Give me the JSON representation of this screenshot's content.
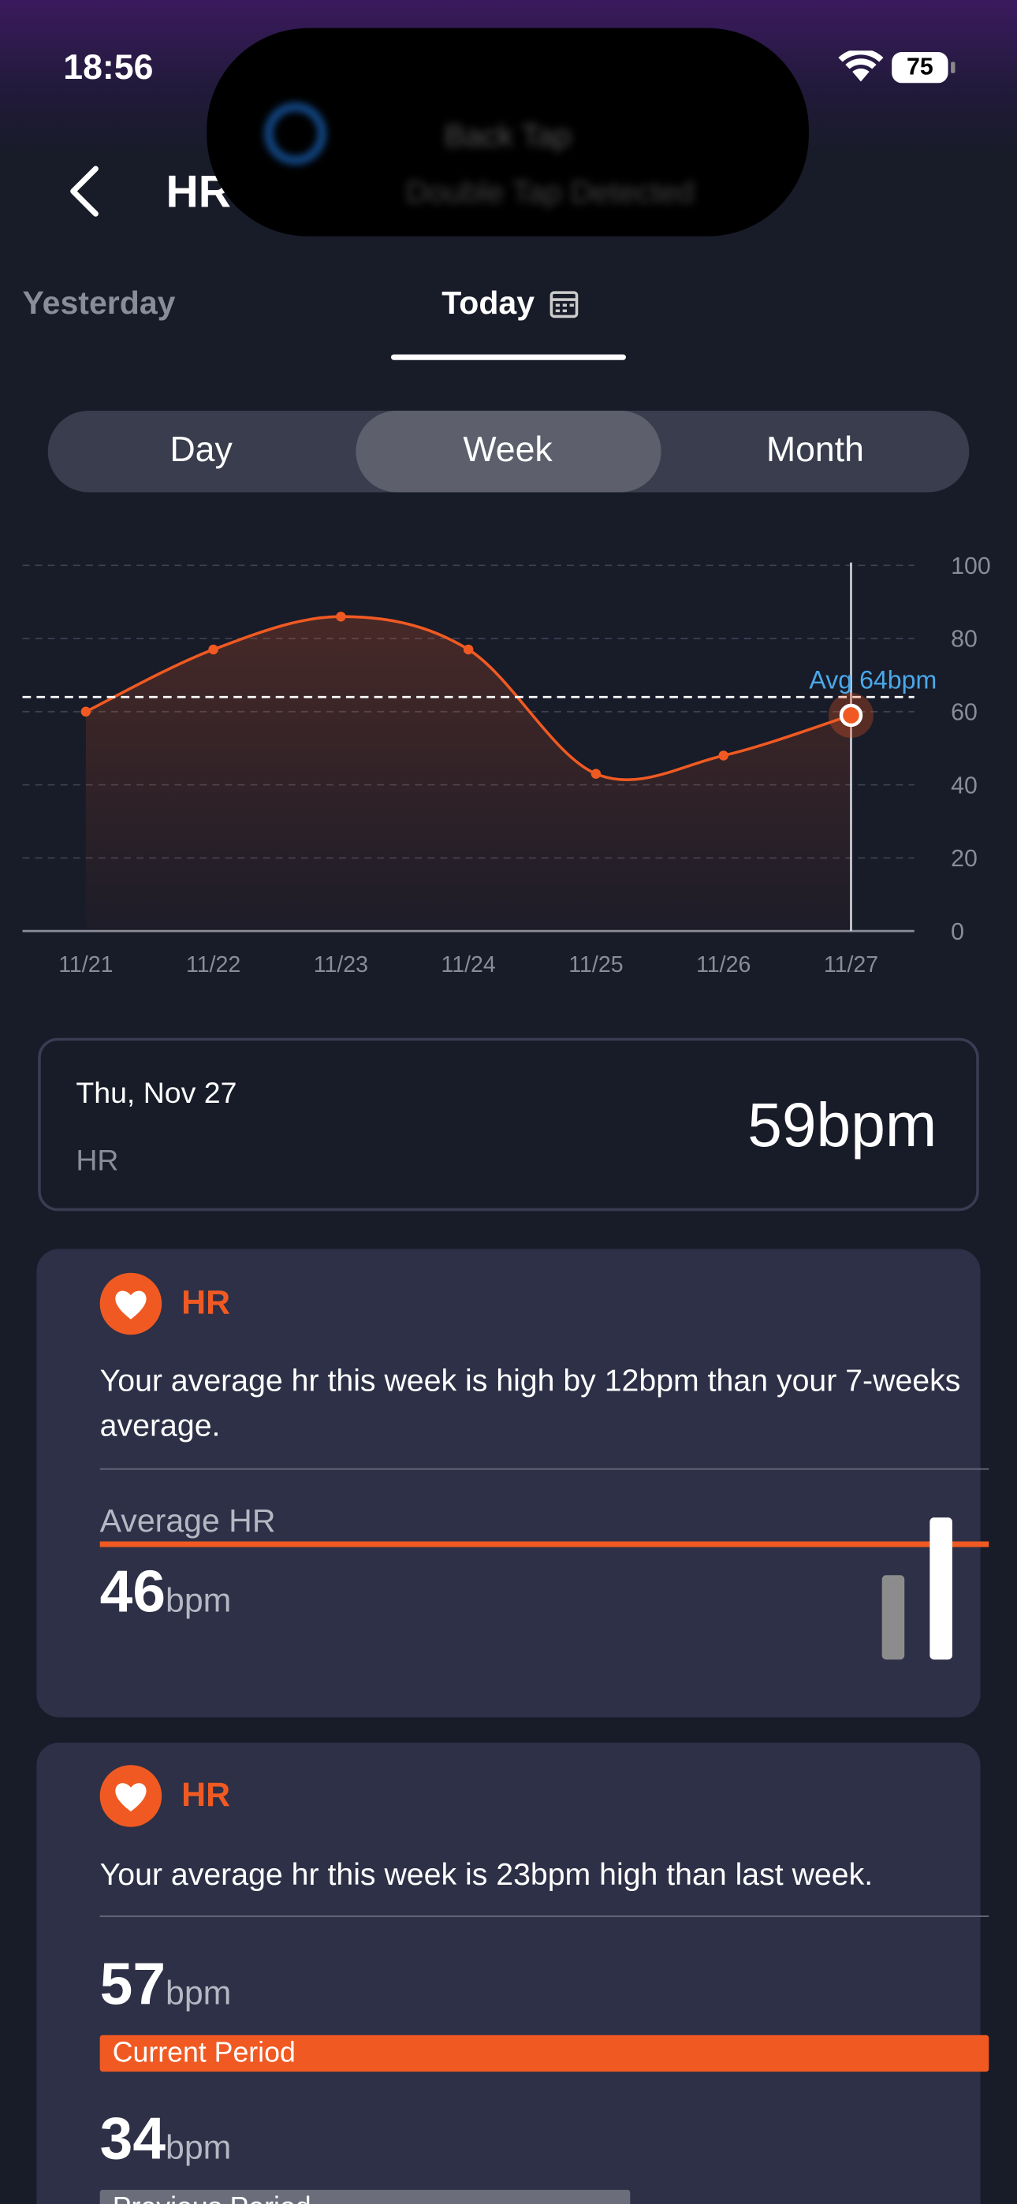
{
  "status": {
    "time": "18:56",
    "battery": "75"
  },
  "notification": {
    "title": "Back Tap",
    "subtitle": "Double Tap Detected"
  },
  "header": {
    "title": "HR"
  },
  "tabs": [
    "Yesterday",
    "Today"
  ],
  "segments": [
    "Day",
    "Week",
    "Month"
  ],
  "chart_data": {
    "type": "line",
    "categories": [
      "11/21",
      "11/22",
      "11/23",
      "11/24",
      "11/25",
      "11/26",
      "11/27"
    ],
    "values": [
      60,
      77,
      86,
      77,
      43,
      48,
      59
    ],
    "color": "#f05a22",
    "ylim": [
      0,
      100
    ],
    "yticks": [
      0,
      20,
      40,
      60,
      80,
      100
    ],
    "grid": true,
    "avg": {
      "value": 64,
      "label": "Avg 64bpm"
    },
    "avg_color": "#4aa8e8"
  },
  "selected": {
    "date": "Thu, Nov 27",
    "label": "HR",
    "value": "59bpm"
  },
  "cards": [
    {
      "title": "HR",
      "text": "Your average hr this week is high by 12bpm than your 7-weeks average.",
      "metric_label": "Average HR",
      "value": 46,
      "unit": "bpm"
    },
    {
      "title": "HR",
      "text": "Your average hr this week is 23bpm high than last week.",
      "periods": [
        {
          "value": 57,
          "unit": "bpm",
          "label": "Current Period"
        },
        {
          "value": 34,
          "unit": "bpm",
          "label": "Previous Period"
        }
      ]
    }
  ]
}
